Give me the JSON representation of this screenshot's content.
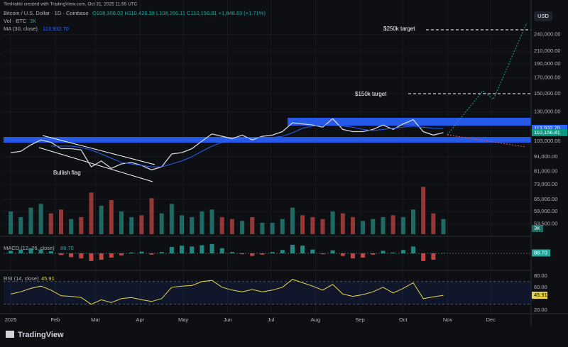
{
  "header": "TimHakki created with TradingView.com, Oct 31, 2025 11:55 UTC",
  "symbol": "Bitcoin / U.S. Dollar · 1D · Coinbase",
  "ohlc": "O108,308.02 H110,426.39 L108,266.11 C110,156.81 +1,848.63 (+1.71%)",
  "volume_legend": {
    "label": "Vol · BTC",
    "value": "3K"
  },
  "ma_legend": {
    "label": "MA (30, close)",
    "value": "113,932.70"
  },
  "currency_button": "USD",
  "logo": "TradingView",
  "chart_data": [
    {
      "type": "line",
      "log_scale": true,
      "grid": true,
      "annotations": [
        "$250k target",
        "$150k target",
        "Bullish flag"
      ],
      "x": [
        0,
        7,
        14,
        21,
        28,
        35,
        42,
        49,
        56,
        63,
        70,
        77,
        84,
        91,
        98,
        105,
        112,
        119,
        126,
        133,
        140,
        147,
        154,
        161,
        168,
        175,
        182,
        189,
        196,
        203,
        210,
        217,
        224,
        231,
        238,
        245,
        252,
        259,
        266,
        273,
        280,
        287,
        294,
        301
      ],
      "xlim": [
        -5,
        362
      ],
      "xticks": [
        {
          "value": 0,
          "label": "2025"
        },
        {
          "value": 31,
          "label": "Feb"
        },
        {
          "value": 59,
          "label": "Mar"
        },
        {
          "value": 90,
          "label": "Apr"
        },
        {
          "value": 120,
          "label": "May"
        },
        {
          "value": 151,
          "label": "Jun"
        },
        {
          "value": 181,
          "label": "Jul"
        },
        {
          "value": 212,
          "label": "Aug"
        },
        {
          "value": 243,
          "label": "Sep"
        },
        {
          "value": 273,
          "label": "Oct"
        },
        {
          "value": 304,
          "label": "Nov"
        },
        {
          "value": 334,
          "label": "Dec"
        }
      ],
      "ylim": [
        49300,
        284500
      ],
      "yticks": [
        {
          "value": 240000,
          "label": "240,000.00"
        },
        {
          "value": 210000,
          "label": "210,000.00"
        },
        {
          "value": 190000,
          "label": "190,000.00"
        },
        {
          "value": 170000,
          "label": "170,000.00"
        },
        {
          "value": 150000,
          "label": "150,000.00"
        },
        {
          "value": 130000,
          "label": "130,000.00"
        },
        {
          "value": 103000,
          "label": "103,000.00"
        },
        {
          "value": 91000,
          "label": "91,000.00"
        },
        {
          "value": 81000,
          "label": "81,000.00"
        },
        {
          "value": 73000,
          "label": "73,000.00"
        },
        {
          "value": 65000,
          "label": "65,000.00"
        },
        {
          "value": 59000,
          "label": "59,000.00"
        },
        {
          "value": 53500,
          "label": "53,500.00"
        }
      ],
      "price_tags": [
        {
          "value": 113932.7,
          "label": "113,932.70",
          "color": "#2962ff"
        },
        {
          "value": 110156.81,
          "label": "110,156.81",
          "color": "#089981"
        }
      ],
      "series": [
        {
          "name": "Bitcoin / U.S. Dollar",
          "color": "#d1d4dc",
          "values": [
            94000,
            95000,
            100000,
            104000,
            102000,
            97000,
            97000,
            96000,
            84000,
            88000,
            83000,
            86000,
            87000,
            85000,
            82000,
            84000,
            93000,
            94000,
            97000,
            103000,
            109000,
            107000,
            105000,
            108000,
            104000,
            107000,
            108000,
            111000,
            119000,
            118000,
            117000,
            115000,
            123000,
            113000,
            111000,
            111000,
            113000,
            117000,
            113000,
            118000,
            122000,
            111000,
            108000,
            110156.81
          ]
        },
        {
          "name": "MA (30, close)",
          "color": "#2962ff",
          "values": [
            null,
            null,
            null,
            null,
            99000,
            99000,
            99000,
            98000,
            96000,
            93000,
            90000,
            87000,
            86000,
            85000,
            84000,
            84000,
            86000,
            88000,
            91000,
            95000,
            99000,
            102000,
            104000,
            105000,
            106000,
            106000,
            106000,
            107000,
            110000,
            114000,
            116000,
            117000,
            117000,
            116000,
            115000,
            113000,
            112000,
            113000,
            114000,
            115000,
            116000,
            115000,
            114000,
            113932.7
          ]
        }
      ],
      "volume": {
        "ylim": [
          0,
          30000
        ],
        "tick": {
          "value": 3000,
          "label": "3K"
        },
        "up_color": "#26a69a",
        "down_color": "#ef5350",
        "values": [
          12000,
          9000,
          14000,
          16000,
          11000,
          13000,
          8000,
          9000,
          22000,
          15000,
          18000,
          12000,
          9000,
          10000,
          19000,
          11000,
          16000,
          10000,
          9000,
          12000,
          13000,
          9000,
          8000,
          7000,
          9000,
          6000,
          6000,
          8000,
          14000,
          10000,
          9000,
          8000,
          12000,
          11000,
          9000,
          7000,
          8000,
          9000,
          10000,
          9000,
          13000,
          25000,
          11000,
          8000
        ]
      }
    },
    {
      "type": "bar",
      "title": "MACD (12, 26, close)",
      "value_label": "88.70",
      "x": [
        0,
        7,
        14,
        21,
        28,
        35,
        42,
        49,
        56,
        63,
        70,
        77,
        84,
        91,
        98,
        105,
        112,
        119,
        126,
        133,
        140,
        147,
        154,
        161,
        168,
        175,
        182,
        189,
        196,
        203,
        210,
        217,
        224,
        231,
        238,
        245,
        252,
        259,
        266,
        273,
        280,
        287,
        294,
        301
      ],
      "ylim": [
        -3500,
        3500
      ],
      "up_color": "#26a69a",
      "down_color": "#ef5350",
      "values": [
        600,
        900,
        1200,
        900,
        500,
        -400,
        -900,
        -1200,
        -1800,
        -1500,
        -1000,
        -500,
        200,
        400,
        -300,
        300,
        1500,
        1800,
        1600,
        1900,
        2200,
        1200,
        300,
        -200,
        -600,
        -300,
        300,
        800,
        2000,
        1800,
        900,
        -200,
        700,
        -600,
        -1200,
        -1000,
        -300,
        600,
        200,
        800,
        1600,
        -1800,
        -1500,
        88.7
      ]
    },
    {
      "type": "line",
      "title": "RSI (14, close)",
      "value_label": "45.91",
      "color": "#e8d44d",
      "x": [
        0,
        7,
        14,
        21,
        28,
        35,
        42,
        49,
        56,
        63,
        70,
        77,
        84,
        91,
        98,
        105,
        112,
        119,
        126,
        133,
        140,
        147,
        154,
        161,
        168,
        175,
        182,
        189,
        196,
        203,
        210,
        217,
        224,
        231,
        238,
        245,
        252,
        259,
        266,
        273,
        280,
        287,
        294,
        301
      ],
      "ylim": [
        16,
        86
      ],
      "band": [
        30,
        70
      ],
      "yticks": [
        {
          "value": 80,
          "label": "80.00"
        },
        {
          "value": 60,
          "label": "60.00"
        },
        {
          "value": 20,
          "label": "20.00"
        }
      ],
      "values": [
        48,
        52,
        58,
        62,
        55,
        45,
        44,
        42,
        30,
        38,
        33,
        40,
        42,
        38,
        35,
        40,
        60,
        62,
        63,
        70,
        72,
        60,
        55,
        52,
        56,
        52,
        55,
        60,
        74,
        68,
        62,
        55,
        65,
        48,
        44,
        47,
        52,
        60,
        50,
        58,
        68,
        40,
        43,
        45.91
      ]
    }
  ]
}
